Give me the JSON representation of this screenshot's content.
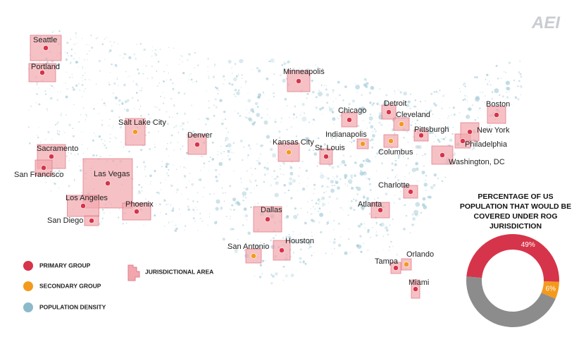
{
  "logo": "AEI",
  "map": {
    "cities": [
      {
        "label": "Seattle",
        "color": "#d6344a"
      },
      {
        "label": "Portland",
        "color": "#d6344a"
      },
      {
        "label": "Sacramento",
        "color": "#d6344a"
      },
      {
        "label": "San Francisco",
        "color": "#d6344a"
      },
      {
        "label": "Las Vegas",
        "color": "#d6344a"
      },
      {
        "label": "Los Angeles",
        "color": "#d6344a"
      },
      {
        "label": "San Diego",
        "color": "#d6344a"
      },
      {
        "label": "Phoenix",
        "color": "#d6344a"
      },
      {
        "label": "Salt Lake City",
        "color": "#f39a1d"
      },
      {
        "label": "Denver",
        "color": "#d6344a"
      },
      {
        "label": "Minneapolis",
        "color": "#d6344a"
      },
      {
        "label": "Kansas City",
        "color": "#f39a1d"
      },
      {
        "label": "St. Louis",
        "color": "#d6344a"
      },
      {
        "label": "Dallas",
        "color": "#d6344a"
      },
      {
        "label": "San Antonio",
        "color": "#f39a1d"
      },
      {
        "label": "Houston",
        "color": "#d6344a"
      },
      {
        "label": "Chicago",
        "color": "#d6344a"
      },
      {
        "label": "Indianapolis",
        "color": "#f39a1d"
      },
      {
        "label": "Detroit",
        "color": "#d6344a"
      },
      {
        "label": "Cleveland",
        "color": "#f39a1d"
      },
      {
        "label": "Columbus",
        "color": "#f39a1d"
      },
      {
        "label": "Pittsburgh",
        "color": "#d6344a"
      },
      {
        "label": "Atlanta",
        "color": "#d6344a"
      },
      {
        "label": "Charlotte",
        "color": "#d6344a"
      },
      {
        "label": "Tampa",
        "color": "#d6344a"
      },
      {
        "label": "Orlando",
        "color": "#f39a1d"
      },
      {
        "label": "Miami",
        "color": "#d6344a"
      },
      {
        "label": "Washington, DC",
        "color": "#d6344a"
      },
      {
        "label": "Philadelphia",
        "color": "#d6344a"
      },
      {
        "label": "New York",
        "color": "#d6344a"
      },
      {
        "label": "Boston",
        "color": "#d6344a"
      }
    ]
  },
  "legend": {
    "items": [
      {
        "label": "PRIMARY GROUP",
        "color": "#d6344a"
      },
      {
        "label": "SECONDARY GROUP",
        "color": "#f39a1d"
      },
      {
        "label": "POPULATION DENSITY",
        "color": "#6fa9bd"
      },
      {
        "label": "JURISDICTIONAL AREA",
        "color": "#f2a6ad"
      }
    ]
  },
  "chart_data": {
    "type": "donut",
    "title": "PERCENTAGE OF US POPULATION THAT WOULD BE COVERED UNDER ROG JURISDICTION",
    "values": [
      49,
      6,
      45
    ],
    "value_labels": [
      "49%",
      "6%",
      null
    ],
    "colors": [
      "#d6344a",
      "#f39a1d",
      "#8c8c8c"
    ]
  }
}
